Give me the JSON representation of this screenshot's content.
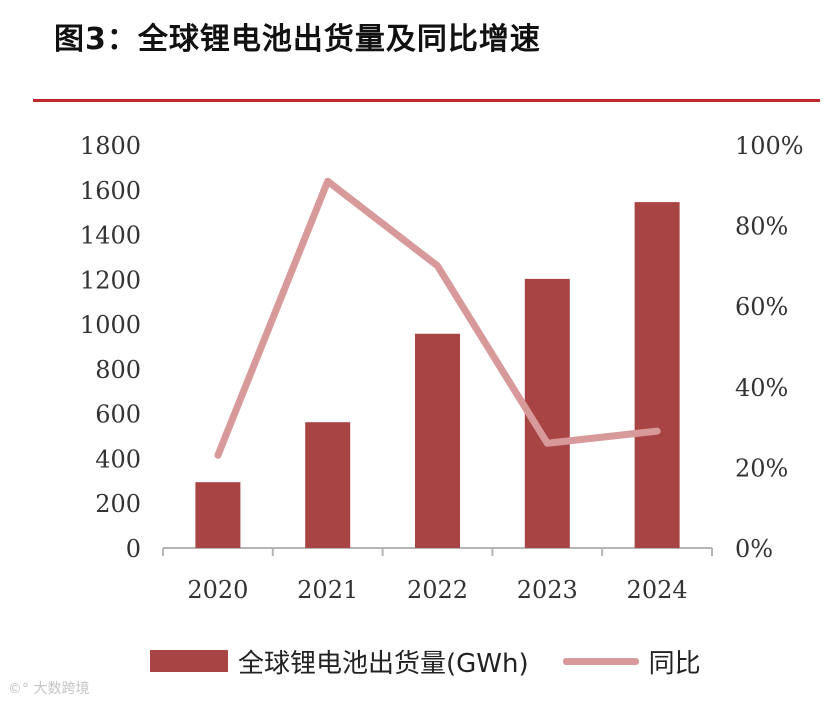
{
  "title": "图3：全球锂电池出货量及同比增速",
  "colors": {
    "bar": "#a84444",
    "line": "#d8999a",
    "rule": "#c0282c",
    "axis": "#b5b5b5"
  },
  "chart_data": {
    "type": "bar",
    "title": "图3：全球锂电池出货量及同比增速",
    "categories": [
      "2020",
      "2021",
      "2022",
      "2023",
      "2024"
    ],
    "series": [
      {
        "name": "全球锂电池出货量(GWh)",
        "type": "bar",
        "axis": "left",
        "values": [
          294,
          562,
          957,
          1202,
          1545
        ]
      },
      {
        "name": "同比",
        "type": "line",
        "axis": "right",
        "values": [
          0.23,
          0.91,
          0.7,
          0.26,
          0.29
        ]
      }
    ],
    "y_left": {
      "min": 0,
      "max": 1800,
      "step": 200,
      "ticks": [
        "0",
        "200",
        "400",
        "600",
        "800",
        "1000",
        "1200",
        "1400",
        "1600",
        "1800"
      ]
    },
    "y_right": {
      "min": 0,
      "max": 1,
      "ticks": [
        "0%",
        "20%",
        "40%",
        "60%",
        "80%",
        "100%"
      ]
    },
    "legend_position": "bottom"
  },
  "watermark": "大数跨境"
}
